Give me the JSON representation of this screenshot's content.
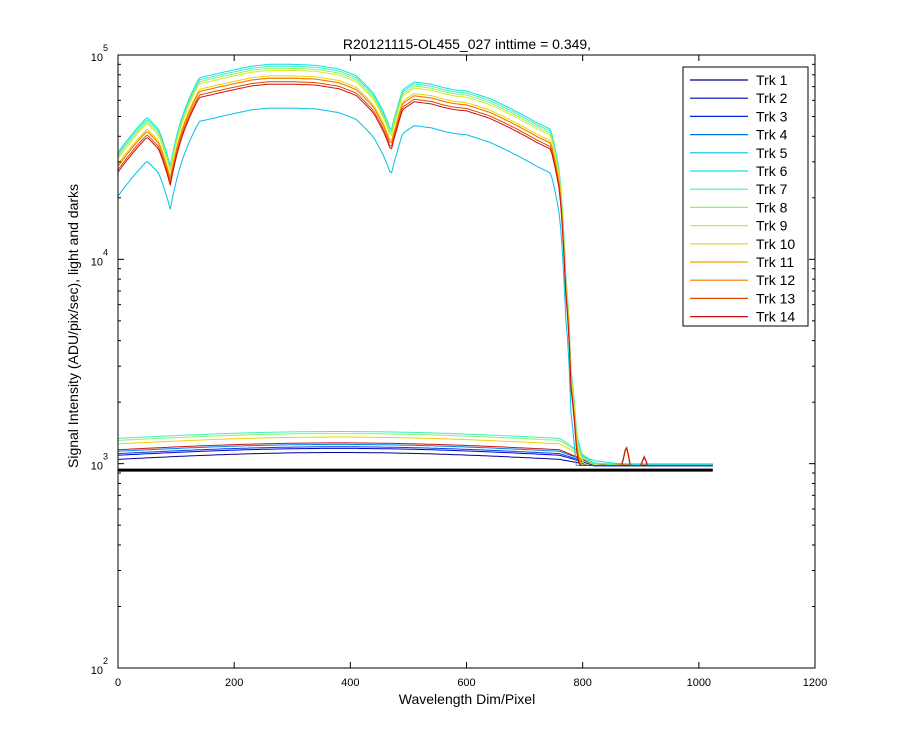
{
  "chart_data": {
    "type": "line",
    "title": "R20121115-OL455_027 inttime = 0.349,",
    "xlabel": "Wavelength Dim/Pixel",
    "ylabel": "Signal Intensity (ADU/pix/sec), light and darks",
    "xlim": [
      0,
      1200
    ],
    "ylim": [
      100,
      100000
    ],
    "yscale": "log",
    "xticks": [
      "0",
      "200",
      "400",
      "600",
      "800",
      "1000",
      "1200"
    ],
    "yticks": [
      {
        "base": "10",
        "exp": "2"
      },
      {
        "base": "10",
        "exp": "3"
      },
      {
        "base": "10",
        "exp": "4"
      },
      {
        "base": "10",
        "exp": "5"
      }
    ],
    "legend_position": "top-right",
    "grid": false,
    "light_shape": {
      "x": [
        0,
        20,
        50,
        70,
        90,
        110,
        140,
        200,
        230,
        260,
        300,
        340,
        380,
        410,
        440,
        460,
        470,
        480,
        490,
        510,
        540,
        560,
        580,
        600,
        640,
        680,
        720,
        745,
        760,
        770,
        780,
        790,
        800,
        820,
        850,
        870,
        880,
        890,
        900,
        1024
      ],
      "rel": [
        0.37,
        0.44,
        0.55,
        0.48,
        0.32,
        0.55,
        0.86,
        0.94,
        0.98,
        1.0,
        1.0,
        0.99,
        0.95,
        0.88,
        0.72,
        0.56,
        0.47,
        0.6,
        0.75,
        0.82,
        0.8,
        0.77,
        0.75,
        0.74,
        0.68,
        0.6,
        0.52,
        0.48,
        0.3,
        0.1,
        0.032,
        0.015,
        0.012,
        0.0115,
        0.0112,
        0.0111,
        0.011,
        0.011,
        0.011,
        0.011
      ]
    },
    "light_series": [
      {
        "name": "Trk 5",
        "color": "#00bfe8",
        "peak": 55000
      },
      {
        "name": "Trk 6",
        "color": "#12dfe0",
        "peak": 90000
      },
      {
        "name": "Trk 7",
        "color": "#3cf0c0",
        "peak": 88000
      },
      {
        "name": "Trk 8",
        "color": "#8ef070",
        "peak": 86000
      },
      {
        "name": "Trk 9",
        "color": "#d2ec20",
        "peak": 84000
      },
      {
        "name": "Trk 10",
        "color": "#f2d000",
        "peak": 79000
      },
      {
        "name": "Trk 11",
        "color": "#f6a000",
        "peak": 77000
      },
      {
        "name": "Trk 12",
        "color": "#f07a00",
        "peak": 77000
      },
      {
        "name": "Trk 13",
        "color": "#e04800",
        "peak": 74000
      },
      {
        "name": "Trk 14",
        "color": "#d01010",
        "peak": 72000
      }
    ],
    "low_series": [
      {
        "color": "#000000",
        "level": 930,
        "end": 930
      },
      {
        "color": "#00009a",
        "level": 1050,
        "end": 975
      },
      {
        "color": "#0000dd",
        "level": 1100,
        "end": 980
      },
      {
        "color": "#0040e0",
        "level": 1120,
        "end": 985
      },
      {
        "color": "#0080e0",
        "level": 1150,
        "end": 990
      },
      {
        "color": "#d01010",
        "level": 1170,
        "end": 985
      },
      {
        "color": "#f2d000",
        "level": 1250,
        "end": 995
      },
      {
        "color": "#8ef070",
        "level": 1300,
        "end": 1000
      },
      {
        "color": "#3cf0c0",
        "level": 1330,
        "end": 1000
      }
    ],
    "series": [
      {
        "name": "Trk 1",
        "color": "#00008f"
      },
      {
        "name": "Trk 2",
        "color": "#0000b8"
      },
      {
        "name": "Trk 3",
        "color": "#0028e0"
      },
      {
        "name": "Trk 4",
        "color": "#0072e6"
      },
      {
        "name": "Trk 5",
        "color": "#00bfe8"
      },
      {
        "name": "Trk 6",
        "color": "#12dfe0"
      },
      {
        "name": "Trk 7",
        "color": "#3cf0c0"
      },
      {
        "name": "Trk 8",
        "color": "#8ef070"
      },
      {
        "name": "Trk 9",
        "color": "#d2ec20"
      },
      {
        "name": "Trk 10",
        "color": "#f2d000"
      },
      {
        "name": "Trk 11",
        "color": "#f6a000"
      },
      {
        "name": "Trk 12",
        "color": "#f07a00"
      },
      {
        "name": "Trk 13",
        "color": "#e04800"
      },
      {
        "name": "Trk 14",
        "color": "#d01010"
      }
    ]
  }
}
